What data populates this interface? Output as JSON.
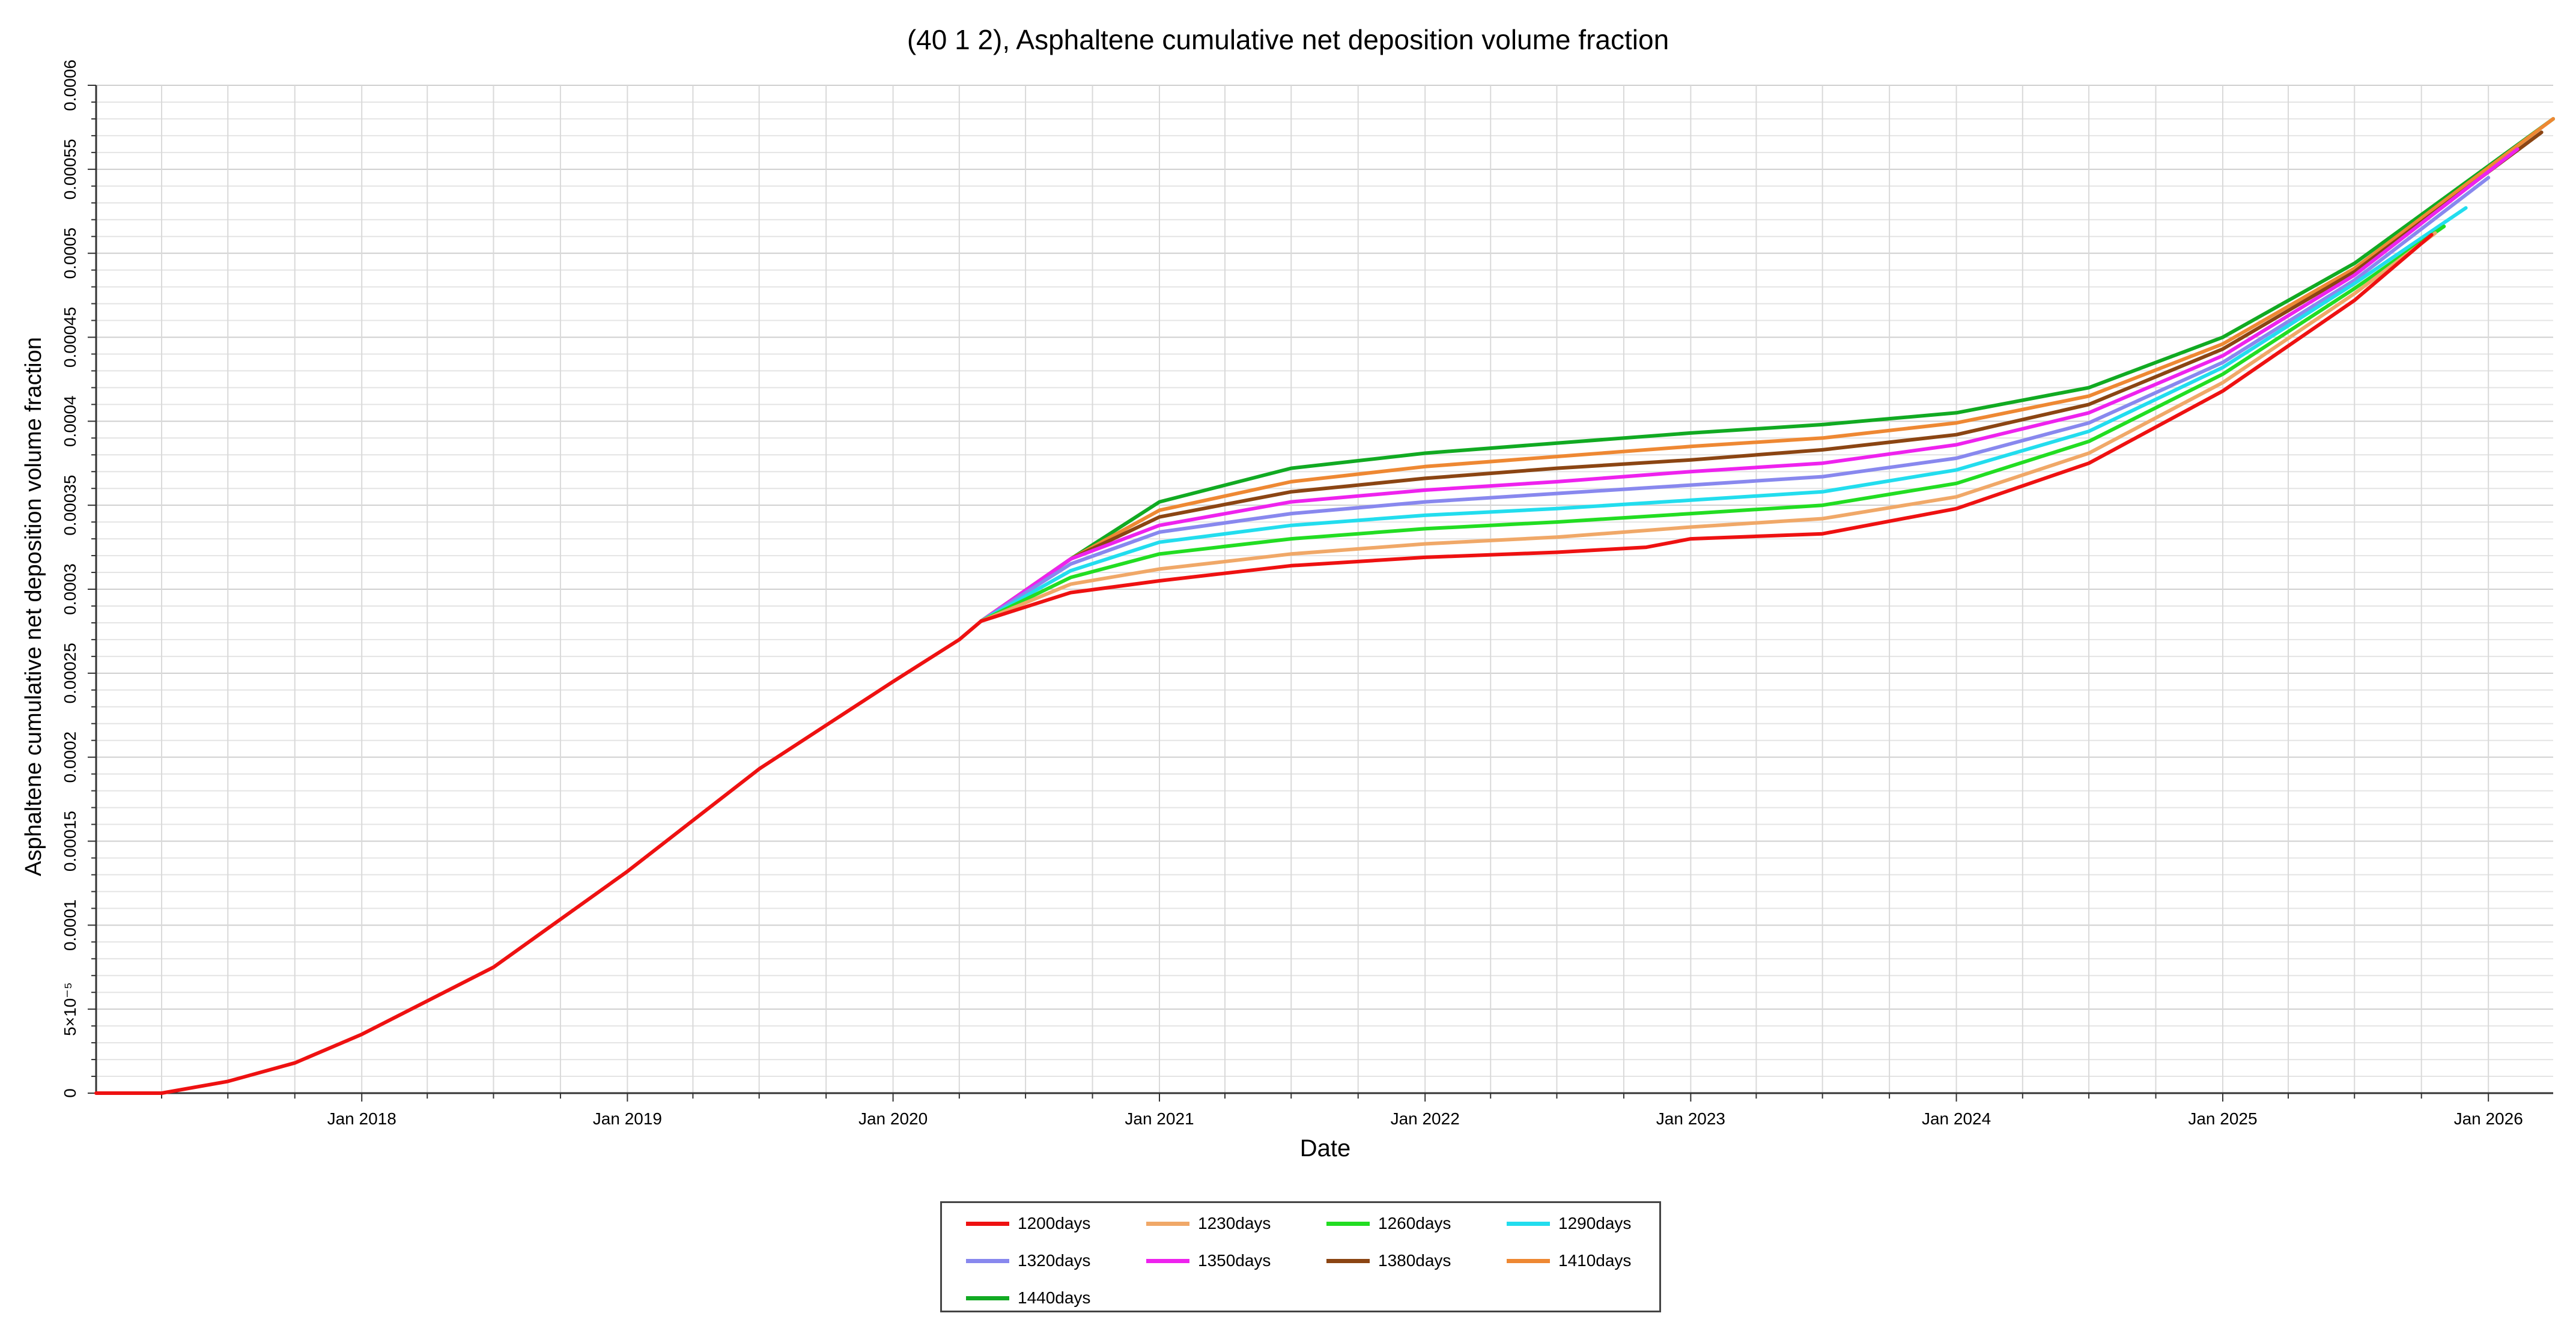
{
  "chart_data": {
    "type": "line",
    "title": "(40 1 2), Asphaltene cumulative net deposition volume fraction",
    "xlabel": "Date",
    "ylabel": "Asphaltene cumulative net deposition volume fraction",
    "xlim": [
      "2017-01-01",
      "2026-03-31"
    ],
    "ylim": [
      0,
      0.0006
    ],
    "grid": true,
    "legend_position": "bottom",
    "x_ticks": [
      "Jan 2018",
      "Jan 2019",
      "Jan 2020",
      "Jan 2021",
      "Jan 2022",
      "Jan 2023",
      "Jan 2024",
      "Jan 2025",
      "Jan 2026"
    ],
    "y_ticks": [
      "0",
      "5×10⁻⁵",
      "0.0001",
      "0.00015",
      "0.0002",
      "0.00025",
      "0.0003",
      "0.00035",
      "0.0004",
      "0.00045",
      "0.0005",
      "0.00055",
      "0.0006"
    ],
    "y_tick_values": [
      0,
      5e-05,
      0.0001,
      0.00015,
      0.0002,
      0.00025,
      0.0003,
      0.00035,
      0.0004,
      0.00045,
      0.0005,
      0.00055,
      0.0006
    ],
    "shared_history": {
      "x": [
        "2017-01-01",
        "2017-04-01",
        "2017-07-01",
        "2017-10-01",
        "2018-01-01",
        "2018-07-01",
        "2019-01-01",
        "2019-07-01",
        "2020-01-01",
        "2020-04-01",
        "2020-05-01"
      ],
      "y": [
        0,
        0,
        7e-06,
        1.8e-05,
        3.5e-05,
        7.5e-05,
        0.000132,
        0.000193,
        0.000245,
        0.00027,
        0.000281
      ]
    },
    "series": [
      {
        "name": "1200days",
        "color": "#ee1111",
        "x": [
          "2020-05-01",
          "2020-09-01",
          "2021-01-01",
          "2021-07-01",
          "2022-01-01",
          "2022-07-01",
          "2022-11-01",
          "2023-01-01",
          "2023-07-01",
          "2024-01-01",
          "2024-07-01",
          "2025-01-01",
          "2025-07-01",
          "2025-10-15"
        ],
        "y": [
          0.000281,
          0.000298,
          0.000305,
          0.000314,
          0.000319,
          0.000322,
          0.000325,
          0.00033,
          0.000333,
          0.000348,
          0.000375,
          0.000418,
          0.000472,
          0.000511
        ]
      },
      {
        "name": "1230days",
        "color": "#f0a868",
        "x": [
          "2020-05-01",
          "2020-09-01",
          "2021-01-01",
          "2021-07-01",
          "2022-01-01",
          "2022-07-01",
          "2023-01-01",
          "2023-07-01",
          "2024-01-01",
          "2024-07-01",
          "2025-01-01",
          "2025-07-01",
          "2025-10-20"
        ],
        "y": [
          0.000281,
          0.000303,
          0.000312,
          0.000321,
          0.000327,
          0.000331,
          0.000337,
          0.000342,
          0.000355,
          0.000381,
          0.000423,
          0.000476,
          0.000512
        ]
      },
      {
        "name": "1260days",
        "color": "#22dd22",
        "x": [
          "2020-05-01",
          "2020-09-01",
          "2021-01-01",
          "2021-07-01",
          "2022-01-01",
          "2022-07-01",
          "2023-01-01",
          "2023-07-01",
          "2024-01-01",
          "2024-07-01",
          "2025-01-01",
          "2025-07-01",
          "2025-11-01"
        ],
        "y": [
          0.000281,
          0.000307,
          0.000321,
          0.00033,
          0.000336,
          0.00034,
          0.000345,
          0.00035,
          0.000363,
          0.000388,
          0.000428,
          0.000479,
          0.000516
        ]
      },
      {
        "name": "1290days",
        "color": "#22ddee",
        "x": [
          "2020-05-01",
          "2020-09-01",
          "2021-01-01",
          "2021-07-01",
          "2022-01-01",
          "2022-07-01",
          "2023-01-01",
          "2023-07-01",
          "2024-01-01",
          "2024-07-01",
          "2025-01-01",
          "2025-07-01",
          "2025-12-01"
        ],
        "y": [
          0.000281,
          0.000311,
          0.000328,
          0.000338,
          0.000344,
          0.000348,
          0.000353,
          0.000358,
          0.000371,
          0.000394,
          0.000432,
          0.000482,
          0.000527
        ]
      },
      {
        "name": "1320days",
        "color": "#8888ee",
        "x": [
          "2020-05-01",
          "2020-09-01",
          "2021-01-01",
          "2021-07-01",
          "2022-01-01",
          "2022-07-01",
          "2023-01-01",
          "2023-07-01",
          "2024-01-01",
          "2024-07-01",
          "2025-01-01",
          "2025-07-01",
          "2026-01-01"
        ],
        "y": [
          0.000281,
          0.000315,
          0.000334,
          0.000345,
          0.000352,
          0.000357,
          0.000362,
          0.000367,
          0.000378,
          0.000399,
          0.000435,
          0.000484,
          0.000545
        ]
      },
      {
        "name": "1350days",
        "color": "#ee22ee",
        "x": [
          "2020-05-01",
          "2020-09-01",
          "2021-01-01",
          "2021-07-01",
          "2022-01-01",
          "2022-07-01",
          "2023-01-01",
          "2023-07-01",
          "2024-01-01",
          "2024-07-01",
          "2025-01-01",
          "2025-07-01",
          "2026-02-10"
        ],
        "y": [
          0.000281,
          0.000318,
          0.000338,
          0.000352,
          0.000359,
          0.000364,
          0.00037,
          0.000375,
          0.000386,
          0.000405,
          0.000439,
          0.000487,
          0.000562
        ]
      },
      {
        "name": "1380days",
        "color": "#8b4513",
        "x": [
          "2020-05-01",
          "2020-09-01",
          "2021-01-01",
          "2021-07-01",
          "2022-01-01",
          "2022-07-01",
          "2023-01-01",
          "2023-07-01",
          "2024-01-01",
          "2024-07-01",
          "2025-01-01",
          "2025-07-01",
          "2026-03-15"
        ],
        "y": [
          0.000281,
          0.000318,
          0.000343,
          0.000358,
          0.000366,
          0.000372,
          0.000377,
          0.000383,
          0.000392,
          0.00041,
          0.000443,
          0.000489,
          0.000572
        ]
      },
      {
        "name": "1410days",
        "color": "#ee8833",
        "x": [
          "2020-05-01",
          "2020-09-01",
          "2021-01-01",
          "2021-07-01",
          "2022-01-01",
          "2022-07-01",
          "2023-01-01",
          "2023-07-01",
          "2024-01-01",
          "2024-07-01",
          "2025-01-01",
          "2025-07-01",
          "2026-03-31"
        ],
        "y": [
          0.000281,
          0.000318,
          0.000347,
          0.000364,
          0.000373,
          0.000379,
          0.000385,
          0.00039,
          0.000399,
          0.000415,
          0.000446,
          0.000491,
          0.00058
        ]
      },
      {
        "name": "1440days",
        "color": "#11aa22",
        "x": [
          "2020-05-01",
          "2020-09-01",
          "2021-01-01",
          "2021-07-01",
          "2022-01-01",
          "2022-07-01",
          "2023-01-01",
          "2023-07-01",
          "2024-01-01",
          "2024-07-01",
          "2025-01-01",
          "2025-07-01",
          "2026-03-31"
        ],
        "y": [
          0.000281,
          0.000318,
          0.000352,
          0.000372,
          0.000381,
          0.000387,
          0.000393,
          0.000398,
          0.000405,
          0.00042,
          0.00045,
          0.000494,
          0.00058
        ]
      }
    ]
  }
}
